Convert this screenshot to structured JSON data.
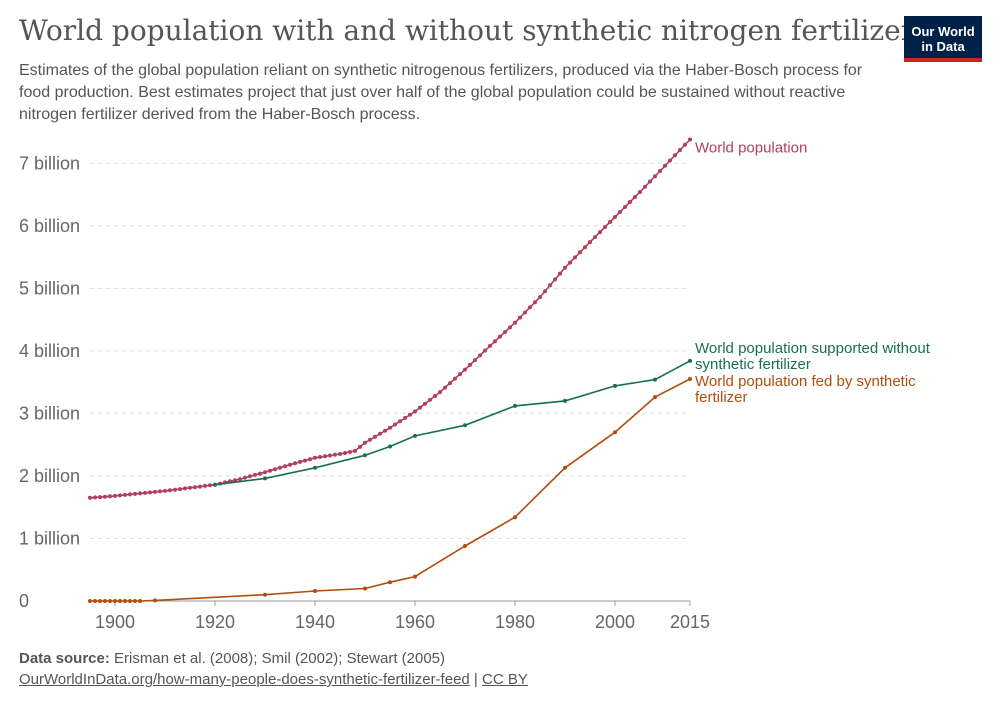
{
  "title": "World population with and without synthetic nitrogen fertilizers",
  "subtitle": "Estimates of the global population reliant on synthetic nitrogenous fertilizers, produced via the Haber-Bosch process for food production. Best estimates project that just over half of the global population could be sustained without reactive nitrogen fertilizer derived from the Haber-Bosch process.",
  "logo": {
    "line1": "Our World",
    "line2": "in Data"
  },
  "footer": {
    "source_label": "Data source:",
    "source_text": "Erisman et al. (2008); Smil (2002); Stewart (2005)",
    "url": "OurWorldInData.org/how-many-people-does-synthetic-fertilizer-feed",
    "separator": "|",
    "license": "CC BY"
  },
  "chart_data": {
    "type": "line",
    "title": "World population with and without synthetic nitrogen fertilizers",
    "xlabel": "",
    "ylabel": "",
    "xlim": [
      1895,
      2015
    ],
    "ylim": [
      0,
      7.5
    ],
    "x_ticks": [
      1900,
      1920,
      1940,
      1960,
      1980,
      2000,
      2015
    ],
    "y_ticks": [
      0,
      1,
      2,
      3,
      4,
      5,
      6,
      7
    ],
    "y_tick_labels": [
      "0",
      "1 billion",
      "2 billion",
      "3 billion",
      "4 billion",
      "5 billion",
      "6 billion",
      "7 billion"
    ],
    "grid": true,
    "series": [
      {
        "name": "World population",
        "label_lines": [
          "World population"
        ],
        "color": "#b13f5d",
        "dense_markers": true,
        "points": [
          [
            1895,
            1.65
          ],
          [
            1900,
            1.68
          ],
          [
            1905,
            1.72
          ],
          [
            1910,
            1.76
          ],
          [
            1915,
            1.81
          ],
          [
            1920,
            1.86
          ],
          [
            1925,
            1.95
          ],
          [
            1930,
            2.06
          ],
          [
            1935,
            2.18
          ],
          [
            1940,
            2.29
          ],
          [
            1945,
            2.35
          ],
          [
            1948,
            2.4
          ],
          [
            1950,
            2.53
          ],
          [
            1955,
            2.77
          ],
          [
            1960,
            3.03
          ],
          [
            1965,
            3.34
          ],
          [
            1970,
            3.7
          ],
          [
            1975,
            4.08
          ],
          [
            1980,
            4.45
          ],
          [
            1985,
            4.86
          ],
          [
            1990,
            5.33
          ],
          [
            1995,
            5.74
          ],
          [
            2000,
            6.14
          ],
          [
            2005,
            6.54
          ],
          [
            2010,
            6.96
          ],
          [
            2015,
            7.38
          ]
        ]
      },
      {
        "name": "World population supported without synthetic fertilizer",
        "label_lines": [
          "World population supported without",
          "synthetic fertilizer"
        ],
        "color": "#19704f",
        "dense_markers": false,
        "points": [
          [
            1920,
            1.86
          ],
          [
            1930,
            1.96
          ],
          [
            1940,
            2.13
          ],
          [
            1950,
            2.33
          ],
          [
            1955,
            2.47
          ],
          [
            1960,
            2.64
          ],
          [
            1970,
            2.81
          ],
          [
            1980,
            3.12
          ],
          [
            1990,
            3.2
          ],
          [
            2000,
            3.44
          ],
          [
            2008,
            3.54
          ],
          [
            2015,
            3.84
          ]
        ]
      },
      {
        "name": "World population fed by synthetic fertilizer",
        "label_lines": [
          "World population fed by synthetic",
          "fertilizer"
        ],
        "color": "#b24d0c",
        "dense_markers": false,
        "points": [
          [
            1895,
            0
          ],
          [
            1896,
            0
          ],
          [
            1897,
            0
          ],
          [
            1898,
            0
          ],
          [
            1899,
            0
          ],
          [
            1900,
            0
          ],
          [
            1901,
            0
          ],
          [
            1902,
            0
          ],
          [
            1903,
            0
          ],
          [
            1904,
            0
          ],
          [
            1905,
            0
          ],
          [
            1908,
            0.01
          ],
          [
            1930,
            0.1
          ],
          [
            1940,
            0.16
          ],
          [
            1950,
            0.2
          ],
          [
            1955,
            0.3
          ],
          [
            1960,
            0.39
          ],
          [
            1970,
            0.88
          ],
          [
            1980,
            1.34
          ],
          [
            1990,
            2.13
          ],
          [
            2000,
            2.7
          ],
          [
            2008,
            3.26
          ],
          [
            2015,
            3.55
          ]
        ]
      }
    ]
  }
}
